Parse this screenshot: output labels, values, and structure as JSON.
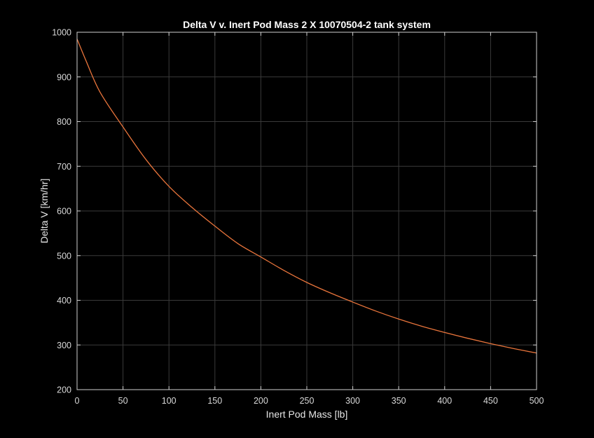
{
  "chart_data": {
    "type": "line",
    "title": "Delta V v. Inert Pod Mass 2 X 10070504-2 tank system",
    "xlabel": "Inert Pod Mass [lb]",
    "ylabel": "Delta V [km/hr]",
    "xlim": [
      0,
      500
    ],
    "ylim": [
      200,
      1000
    ],
    "xticks": [
      0,
      50,
      100,
      150,
      200,
      250,
      300,
      350,
      400,
      450,
      500
    ],
    "yticks": [
      200,
      300,
      400,
      500,
      600,
      700,
      800,
      900,
      1000
    ],
    "grid": true,
    "colors": {
      "background": "#000000",
      "line": "#e8743b",
      "axes": "#cfcfcf",
      "grid": "#3a3a3a"
    },
    "series": [
      {
        "x": [
          0,
          10,
          25,
          50,
          75,
          100,
          125,
          150,
          175,
          200,
          225,
          250,
          275,
          300,
          325,
          350,
          375,
          400,
          425,
          450,
          475,
          500
        ],
        "y": [
          985,
          935,
          866,
          788,
          715,
          655,
          608,
          566,
          527,
          497,
          467,
          440,
          417,
          396,
          376,
          358,
          342,
          328,
          315,
          303,
          292,
          282
        ]
      }
    ]
  }
}
